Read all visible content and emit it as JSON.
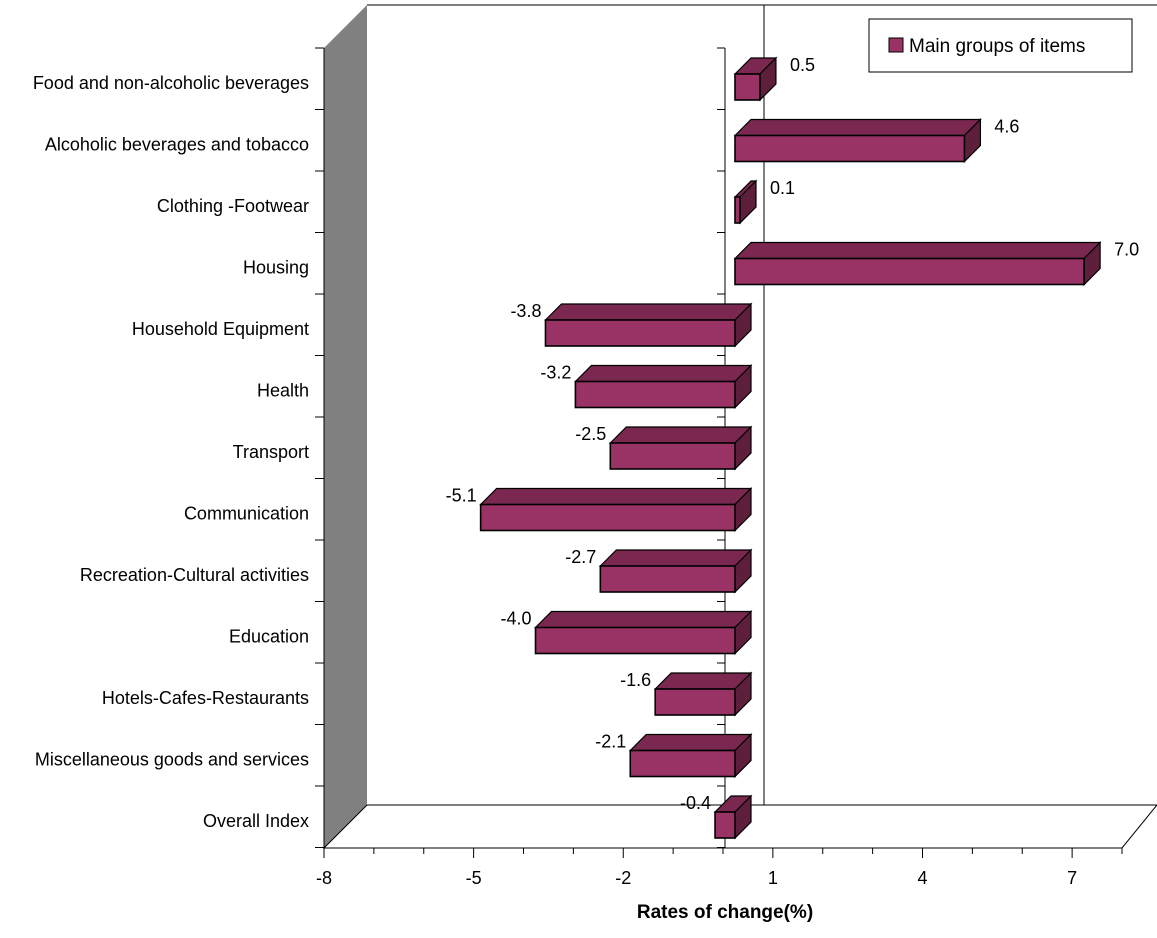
{
  "chart_data": {
    "type": "bar",
    "orientation": "horizontal",
    "categories": [
      "Food and non-alcoholic beverages",
      "Alcoholic beverages and tobacco",
      "Clothing -Footwear",
      "Housing",
      "Household Equipment",
      "Health",
      "Transport",
      "Communication",
      "Recreation-Cultural activities",
      "Education",
      "Hotels-Cafes-Restaurants",
      "Miscellaneous goods and services",
      "Overall Index"
    ],
    "series": [
      {
        "name": "Main groups of items",
        "values": [
          0.5,
          4.6,
          0.1,
          7.0,
          -3.8,
          -3.2,
          -2.5,
          -5.1,
          -2.7,
          -4.0,
          -1.6,
          -2.1,
          -0.4
        ],
        "labels": [
          "0.5",
          "4.6",
          "0.1",
          "7.0",
          "-3.8",
          "-3.2",
          "-2.5",
          "-5.1",
          "-2.7",
          "-4.0",
          "-1.6",
          "-2.1",
          "-0.4"
        ]
      }
    ],
    "xlabel": "Rates of change(%)",
    "ylabel": "",
    "xlim": [
      -8,
      8
    ],
    "xticks": [
      -8,
      -5,
      -2,
      1,
      4,
      7
    ],
    "xtick_labels": [
      "-8",
      "-5",
      "-2",
      "1",
      "4",
      "7"
    ],
    "legend_position": "top-right",
    "grid": false,
    "three_d": true,
    "colors": {
      "bar_front": "#993366",
      "bar_top": "#7a284f",
      "bar_side": "#5e1f3d",
      "left_wall": "#808080",
      "axis": "#000000",
      "background": "#ffffff"
    }
  }
}
